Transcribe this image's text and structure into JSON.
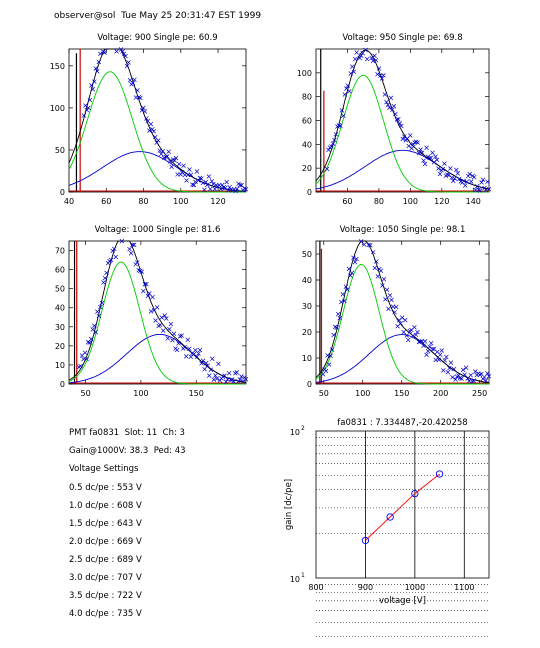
{
  "header": "observer@sol  Tue May 25 20:31:47 EST 1999",
  "info": {
    "pmt_line": "PMT fa0831  Slot: 11  Ch: 3",
    "gain_line": "Gain@1000V: 38.3  Ped: 43",
    "settings_title": "Voltage Settings",
    "settings": [
      "0.5 dc/pe : 553 V",
      "1.0 dc/pe : 608 V",
      "1.5 dc/pe : 643 V",
      "2.0 dc/pe : 669 V",
      "2.5 dc/pe : 689 V",
      "3.0 dc/pe : 707 V",
      "3.5 dc/pe : 722 V",
      "4.0 dc/pe : 735 V"
    ]
  },
  "colors": {
    "data": "#0000cc",
    "fit_total": "#000000",
    "fit_single": "#00cc00",
    "fit_double": "#0000cc",
    "pedestal": "#cc0000",
    "grid": "#000000",
    "gain_fit": "#ff0000",
    "gain_points": "#0000ff"
  },
  "chart_data": [
    {
      "type": "scatter",
      "title": "Voltage: 900 Single pe: 60.9",
      "xlim": [
        40,
        135
      ],
      "ylim": [
        0,
        170
      ],
      "xticks": [
        40,
        60,
        80,
        100,
        120
      ],
      "yticks": [
        0,
        50,
        100,
        150
      ],
      "spe": {
        "amp": 143,
        "mean": 62,
        "sigma": 12
      },
      "dpe": {
        "amp": 48,
        "mean": 78,
        "sigma": 20
      },
      "noise": 10,
      "seed": 11,
      "pedestal": {
        "x": [
          44,
          46
        ],
        "heights": [
          165,
          170
        ]
      },
      "series": [
        {
          "values_from": "spe+dpe"
        }
      ]
    },
    {
      "type": "scatter",
      "title": "Voltage: 950 Single pe: 69.8",
      "xlim": [
        40,
        150
      ],
      "ylim": [
        0,
        120
      ],
      "xticks": [
        60,
        80,
        100,
        120,
        140
      ],
      "yticks": [
        0,
        20,
        40,
        60,
        80,
        100
      ],
      "spe": {
        "amp": 98,
        "mean": 70,
        "sigma": 13
      },
      "dpe": {
        "amp": 35,
        "mean": 95,
        "sigma": 24
      },
      "noise": 8,
      "seed": 23,
      "pedestal": {
        "x": [
          43,
          45
        ],
        "heights": [
          120,
          85
        ]
      },
      "series": [
        {
          "values_from": "spe+dpe"
        }
      ]
    },
    {
      "type": "scatter",
      "title": "Voltage: 1000 Single pe: 81.6",
      "xlim": [
        35,
        195
      ],
      "ylim": [
        0,
        75
      ],
      "xticks": [
        50,
        100,
        150
      ],
      "yticks": [
        0,
        10,
        20,
        30,
        40,
        50,
        60,
        70
      ],
      "spe": {
        "amp": 64,
        "mean": 82,
        "sigma": 17
      },
      "dpe": {
        "amp": 26,
        "mean": 117,
        "sigma": 30
      },
      "noise": 6,
      "seed": 37,
      "pedestal": {
        "x": [
          40,
          42
        ],
        "heights": [
          75,
          75
        ]
      },
      "series": [
        {
          "values_from": "spe+dpe"
        }
      ]
    },
    {
      "type": "scatter",
      "title": "Voltage: 1050 Single pe: 98.1",
      "xlim": [
        40,
        262
      ],
      "ylim": [
        0,
        55
      ],
      "xticks": [
        50,
        100,
        150,
        200,
        250
      ],
      "yticks": [
        0,
        10,
        20,
        30,
        40,
        50
      ],
      "spe": {
        "amp": 46,
        "mean": 98,
        "sigma": 23
      },
      "dpe": {
        "amp": 19,
        "mean": 150,
        "sigma": 42
      },
      "noise": 4,
      "seed": 51,
      "pedestal": {
        "x": [
          45,
          47
        ],
        "heights": [
          55,
          52
        ]
      },
      "series": [
        {
          "values_from": "spe+dpe"
        }
      ]
    },
    {
      "type": "line",
      "title": "fa0831 : 7.334487,-20.420258",
      "xlabel": "voltage [V]",
      "ylabel": "gain [dc/pe]",
      "xlim": [
        800,
        1150
      ],
      "ylim": [
        10,
        100
      ],
      "yscale": "log",
      "xticks": [
        800,
        900,
        1000,
        1100
      ],
      "yticklabels": [
        "10",
        "10"
      ],
      "x": [
        900,
        950,
        1000,
        1050
      ],
      "y": [
        18,
        26,
        37.5,
        51
      ],
      "fit": {
        "slope": 7.334487,
        "intercept": -20.420258
      }
    }
  ]
}
